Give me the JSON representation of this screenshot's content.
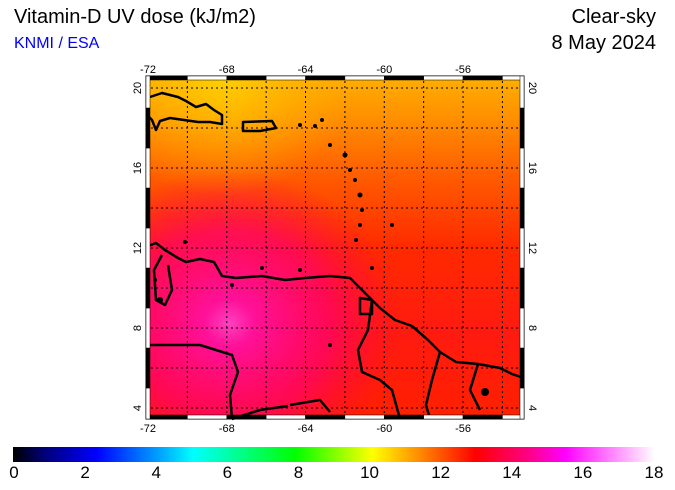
{
  "header": {
    "title": "Vitamin-D UV dose (kJ/m2)",
    "credit": "KNMI / ESA",
    "mode": "Clear-sky",
    "date": "8 May 2024"
  },
  "map": {
    "lon_labels": [
      "-72",
      "-68",
      "-64",
      "-60",
      "-56"
    ],
    "lat_labels": [
      "20",
      "16",
      "12",
      "8",
      "4"
    ],
    "lon_values": [
      -72,
      -68,
      -64,
      -60,
      -56
    ],
    "lat_values": [
      20,
      16,
      12,
      8,
      4
    ],
    "extent": {
      "lon": [
        -72.1,
        -53
      ],
      "lat": [
        3.45,
        20.6
      ]
    }
  },
  "colorbar": {
    "labels": [
      "0",
      "2",
      "4",
      "6",
      "8",
      "10",
      "12",
      "14",
      "16",
      "18"
    ],
    "min": 0,
    "max": 18
  }
}
